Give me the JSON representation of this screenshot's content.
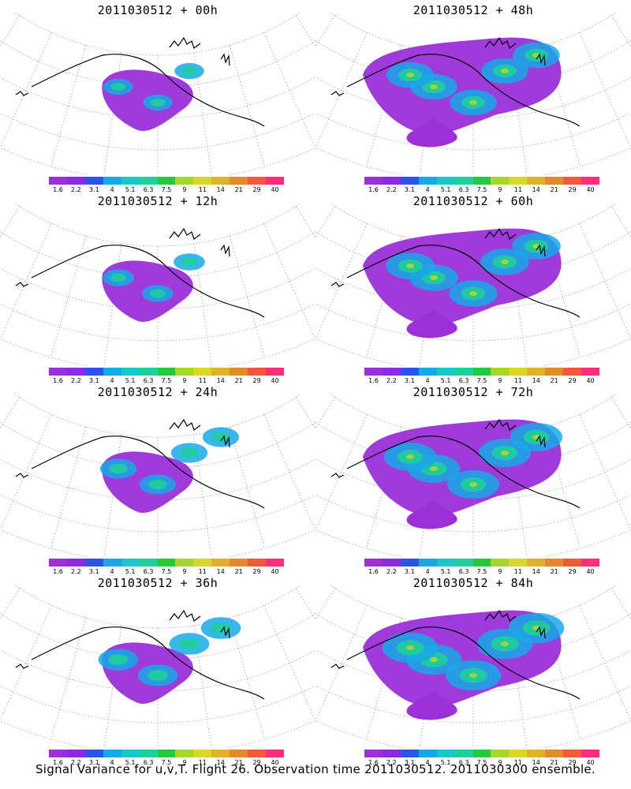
{
  "panels": [
    {
      "title": "2011030512 + 00h",
      "lead": "00h"
    },
    {
      "title": "2011030512 + 48h",
      "lead": "48h"
    },
    {
      "title": "2011030512 + 12h",
      "lead": "12h"
    },
    {
      "title": "2011030512 + 60h",
      "lead": "60h"
    },
    {
      "title": "2011030512 + 24h",
      "lead": "24h"
    },
    {
      "title": "2011030512 + 72h",
      "lead": "72h"
    },
    {
      "title": "2011030512 + 36h",
      "lead": "36h"
    },
    {
      "title": "2011030512 + 84h",
      "lead": "84h"
    }
  ],
  "colorbar": {
    "labels": [
      "1.6",
      "2.2",
      "3.1",
      "4",
      "5.1",
      "6.3",
      "7.5",
      "9",
      "11",
      "14",
      "21",
      "29",
      "40"
    ],
    "colors": [
      "#9b30d9",
      "#8a2be2",
      "#2a55e8",
      "#16a9e6",
      "#19c6c8",
      "#1ecf9a",
      "#22c93c",
      "#a6d62b",
      "#d8d82a",
      "#e0b12b",
      "#e38a2c",
      "#f05a3a",
      "#ff2d7a"
    ]
  },
  "caption": "Signal Variance for u,v,T. Flight 26. Observation time 2011030512. 2011030300 ensemble.",
  "colors": {
    "background": "#ffffff",
    "coastline": "#000000",
    "graticule": "#9a9a9a"
  }
}
